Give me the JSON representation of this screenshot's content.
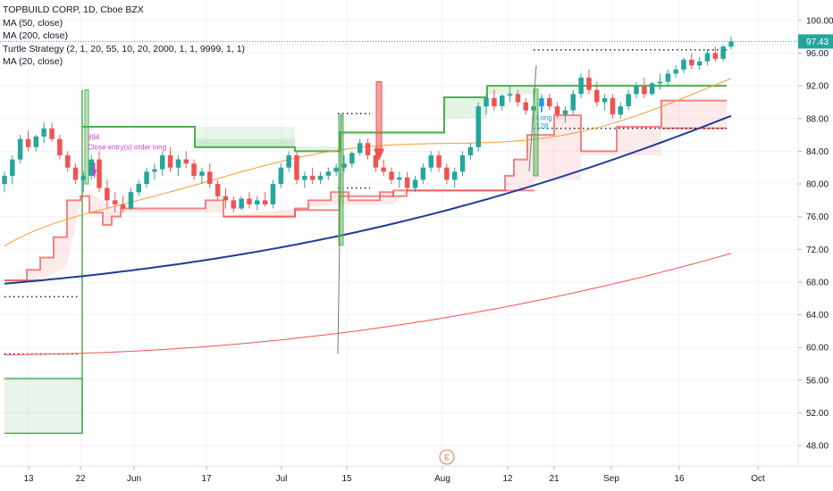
{
  "legend": {
    "symbol": "TOPBUILD CORP, 1D, Cboe BZX",
    "ma50": "MA (50, close)",
    "ma200": "MA (200, close)",
    "turtle": "Turtle Strategy (2, 1, 20, 55, 10, 20, 2000, 1, 1, 9999, 1, 1)",
    "ma20": "MA (20, close)"
  },
  "price_label": "97.43",
  "annotations": {
    "close_entry": "Close entry(s) order long",
    "close_num": "894",
    "long": "Long",
    "long_num": "128",
    "earnings": "E"
  },
  "colors": {
    "up": "#26a69a",
    "down": "#ef5350",
    "ma20": "#f59b3a",
    "ma50": "#1f3c99",
    "ma200": "#ef5350",
    "turtle_green": "#4caf50",
    "turtle_red": "#ef5350",
    "price_tag": "#26a69a"
  },
  "chart_data": {
    "type": "candlestick",
    "y_axis": {
      "ticks": [
        "48.00",
        "52.00",
        "56.00",
        "60.00",
        "64.00",
        "68.00",
        "72.00",
        "76.00",
        "80.00",
        "84.00",
        "88.00",
        "92.00",
        "96.00",
        "100.00"
      ],
      "range": [
        45.5,
        102.5
      ]
    },
    "x_axis": {
      "ticks": [
        "13",
        "22",
        "Jun",
        "17",
        "Jul",
        "15",
        "Aug",
        "12",
        "21",
        "Sep",
        "16",
        "Oct"
      ]
    },
    "candles": [
      [
        80.0,
        81.5,
        79.0,
        81.0
      ],
      [
        81.0,
        83.5,
        80.0,
        83.0
      ],
      [
        83.0,
        86.0,
        82.5,
        85.5
      ],
      [
        85.5,
        86.5,
        84.0,
        84.5
      ],
      [
        84.5,
        86.0,
        84.0,
        85.8
      ],
      [
        85.8,
        87.5,
        85.0,
        86.8
      ],
      [
        86.8,
        87.5,
        85.2,
        85.5
      ],
      [
        85.5,
        86.0,
        83.0,
        83.5
      ],
      [
        83.5,
        84.0,
        81.5,
        82.0
      ],
      [
        82.0,
        82.5,
        80.0,
        80.5
      ],
      [
        80.5,
        81.5,
        79.0,
        81.0
      ],
      [
        81.0,
        83.5,
        80.5,
        83.0
      ],
      [
        83.0,
        84.0,
        79.0,
        79.5
      ],
      [
        79.5,
        80.5,
        77.0,
        78.0
      ],
      [
        78.0,
        79.0,
        76.5,
        77.5
      ],
      [
        77.5,
        78.5,
        76.5,
        77.0
      ],
      [
        77.0,
        79.5,
        76.8,
        79.0
      ],
      [
        79.0,
        80.5,
        78.5,
        80.0
      ],
      [
        80.0,
        82.0,
        79.5,
        81.5
      ],
      [
        81.5,
        82.5,
        80.5,
        81.8
      ],
      [
        81.8,
        84.0,
        81.0,
        83.5
      ],
      [
        83.5,
        84.5,
        81.5,
        82.0
      ],
      [
        82.0,
        83.5,
        81.0,
        83.0
      ],
      [
        83.0,
        84.0,
        82.0,
        82.5
      ],
      [
        82.5,
        83.0,
        80.5,
        81.0
      ],
      [
        81.0,
        82.0,
        80.0,
        81.5
      ],
      [
        81.5,
        82.5,
        79.5,
        80.0
      ],
      [
        80.0,
        80.5,
        78.0,
        78.5
      ],
      [
        78.5,
        79.5,
        77.0,
        78.0
      ],
      [
        78.0,
        78.5,
        76.5,
        77.0
      ],
      [
        77.0,
        78.5,
        76.8,
        78.2
      ],
      [
        78.2,
        79.0,
        77.0,
        77.5
      ],
      [
        77.5,
        78.5,
        76.8,
        78.0
      ],
      [
        78.0,
        79.0,
        77.2,
        77.5
      ],
      [
        77.5,
        80.5,
        77.0,
        80.0
      ],
      [
        80.0,
        82.5,
        79.5,
        82.0
      ],
      [
        82.0,
        84.0,
        81.5,
        83.5
      ],
      [
        83.5,
        84.0,
        80.0,
        80.5
      ],
      [
        80.5,
        81.5,
        79.5,
        81.0
      ],
      [
        81.0,
        82.0,
        80.0,
        80.5
      ],
      [
        80.5,
        81.5,
        80.0,
        81.0
      ],
      [
        81.0,
        82.0,
        80.5,
        81.5
      ],
      [
        81.5,
        82.5,
        81.0,
        82.0
      ],
      [
        82.0,
        83.5,
        81.5,
        82.5
      ],
      [
        82.5,
        84.0,
        82.0,
        83.8
      ],
      [
        83.8,
        85.5,
        83.5,
        85.0
      ],
      [
        85.0,
        85.5,
        83.0,
        83.5
      ],
      [
        83.5,
        84.5,
        81.5,
        82.0
      ],
      [
        82.0,
        83.0,
        81.0,
        81.5
      ],
      [
        81.5,
        82.0,
        80.0,
        80.5
      ],
      [
        80.5,
        81.5,
        79.5,
        80.8
      ],
      [
        80.8,
        81.5,
        79.0,
        79.5
      ],
      [
        79.5,
        81.0,
        79.0,
        80.5
      ],
      [
        80.5,
        82.5,
        80.0,
        82.0
      ],
      [
        82.0,
        84.0,
        81.5,
        83.5
      ],
      [
        83.5,
        84.0,
        81.5,
        82.0
      ],
      [
        82.0,
        82.5,
        80.0,
        80.5
      ],
      [
        80.5,
        82.0,
        79.5,
        81.5
      ],
      [
        81.5,
        84.0,
        81.0,
        83.5
      ],
      [
        83.5,
        85.0,
        83.0,
        84.5
      ],
      [
        84.5,
        90.0,
        84.0,
        89.5
      ],
      [
        89.5,
        91.0,
        88.5,
        90.5
      ],
      [
        90.5,
        91.5,
        89.0,
        89.5
      ],
      [
        89.5,
        91.0,
        89.0,
        90.8
      ],
      [
        90.8,
        92.0,
        90.0,
        91.0
      ],
      [
        91.0,
        91.5,
        89.5,
        90.0
      ],
      [
        90.0,
        90.5,
        88.5,
        89.0
      ],
      [
        89.0,
        90.0,
        88.0,
        89.5
      ],
      [
        89.5,
        91.0,
        89.0,
        90.5
      ],
      [
        90.5,
        91.0,
        89.0,
        89.5
      ],
      [
        89.5,
        90.0,
        88.0,
        88.5
      ],
      [
        88.5,
        89.5,
        87.5,
        89.0
      ],
      [
        89.0,
        91.5,
        88.5,
        91.0
      ],
      [
        91.0,
        93.5,
        90.5,
        93.0
      ],
      [
        93.0,
        94.0,
        91.0,
        91.5
      ],
      [
        91.5,
        92.5,
        89.5,
        90.0
      ],
      [
        90.0,
        91.0,
        89.0,
        90.5
      ],
      [
        90.5,
        91.0,
        88.0,
        88.5
      ],
      [
        88.5,
        90.0,
        88.0,
        89.5
      ],
      [
        89.5,
        91.5,
        89.0,
        91.0
      ],
      [
        91.0,
        92.5,
        90.5,
        92.0
      ],
      [
        92.0,
        93.0,
        90.5,
        91.0
      ],
      [
        91.0,
        92.5,
        90.8,
        92.3
      ],
      [
        92.3,
        93.5,
        91.5,
        92.5
      ],
      [
        92.5,
        94.0,
        92.0,
        93.5
      ],
      [
        93.5,
        94.5,
        93.0,
        94.0
      ],
      [
        94.0,
        95.5,
        93.5,
        95.2
      ],
      [
        95.2,
        96.0,
        94.0,
        94.5
      ],
      [
        94.5,
        95.5,
        94.0,
        95.0
      ],
      [
        95.0,
        96.5,
        94.5,
        96.0
      ],
      [
        96.0,
        96.8,
        95.0,
        95.3
      ],
      [
        95.3,
        97.0,
        95.0,
        96.8
      ],
      [
        96.8,
        98.0,
        96.5,
        97.43
      ]
    ]
  }
}
